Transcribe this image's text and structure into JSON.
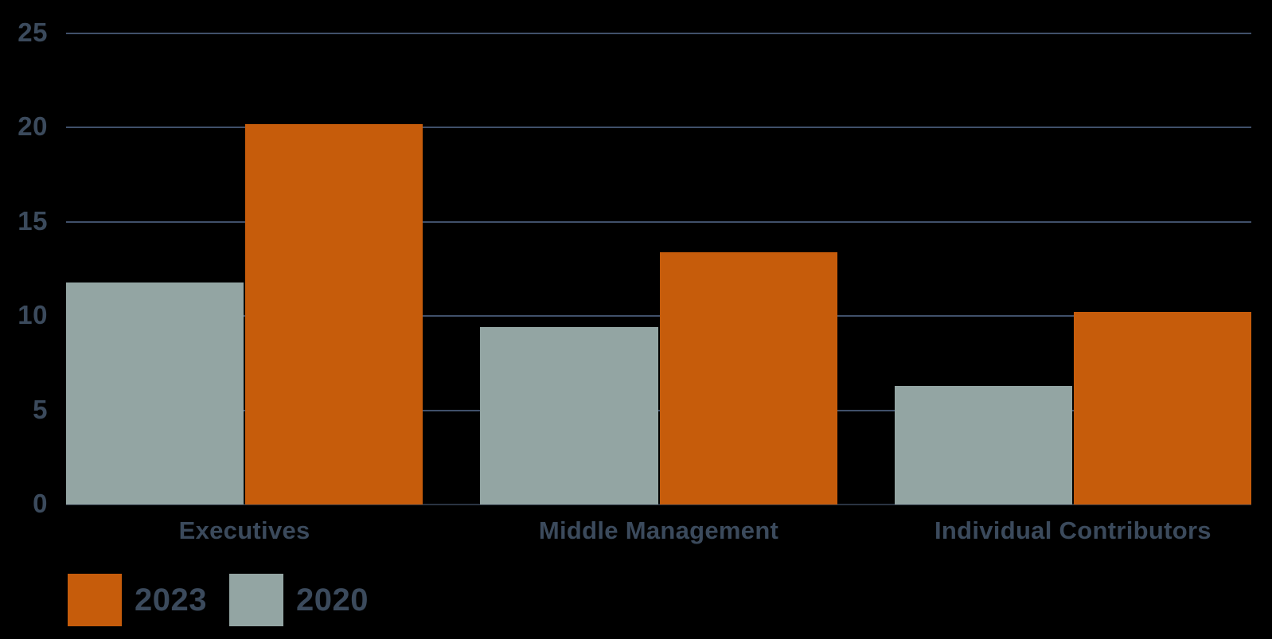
{
  "chart_data": {
    "type": "bar",
    "title": "",
    "xlabel": "",
    "ylabel": "",
    "categories": [
      "Executives",
      "Middle Management",
      "Individual Contributors"
    ],
    "series": [
      {
        "name": "2020",
        "color": "#93A5A3",
        "values": [
          11.8,
          9.4,
          6.3
        ]
      },
      {
        "name": "2023",
        "color": "#C65C0B",
        "values": [
          20.2,
          13.4,
          10.2
        ]
      }
    ],
    "bar_draw_order": [
      "2020",
      "2023"
    ],
    "ylim": [
      0,
      25
    ],
    "yticks": [
      0,
      5,
      10,
      15,
      20,
      25
    ],
    "grid": true,
    "legend": {
      "position": "bottom-left",
      "items": [
        {
          "label": "2023",
          "color": "#C65C0B"
        },
        {
          "label": "2020",
          "color": "#93A5A3"
        }
      ]
    },
    "colors": {
      "background": "#000000",
      "text": "#3B4A5C",
      "gridline": "#40506A",
      "axis_baseline": "#2A3442"
    }
  }
}
